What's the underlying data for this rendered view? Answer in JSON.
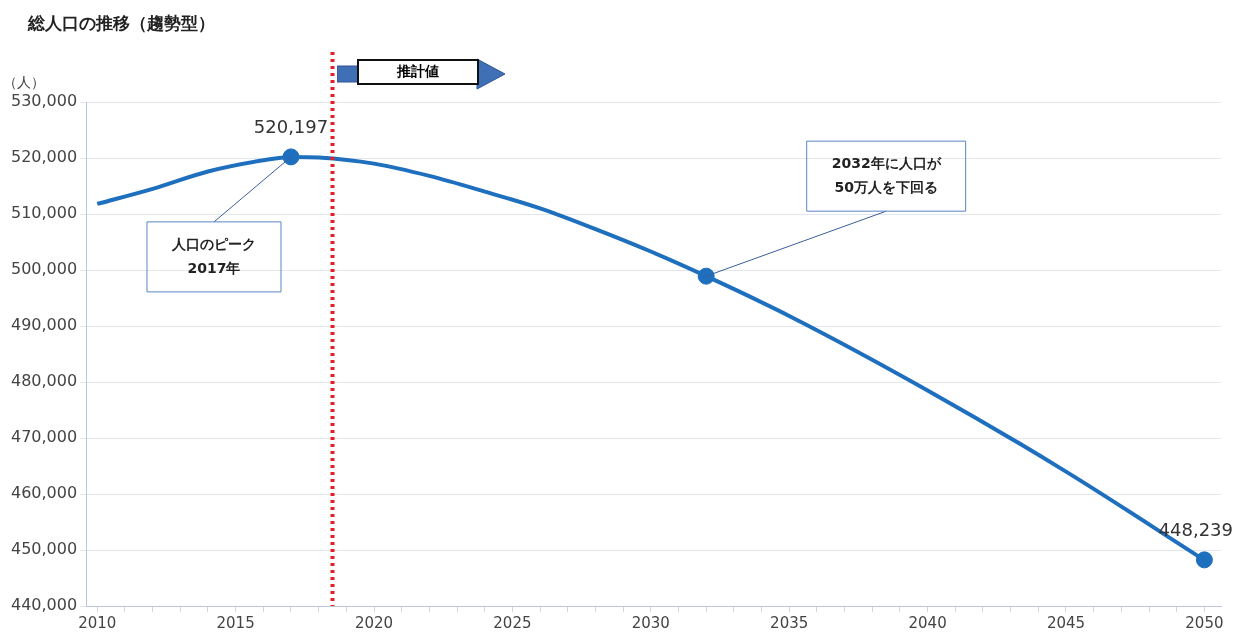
{
  "chart_data": {
    "type": "line",
    "title": "総人口の推移（趨勢型）",
    "ylabel": "（人）",
    "xlim": [
      2009.6,
      2050.6
    ],
    "xticks": [
      2010,
      {
        "value": 2011,
        "label": null
      },
      {
        "value": 2012,
        "label": null
      },
      {
        "value": 2013,
        "label": null
      },
      {
        "value": 2014,
        "label": null
      },
      2015,
      {
        "value": 2016,
        "label": null
      },
      {
        "value": 2017,
        "label": null
      },
      {
        "value": 2018,
        "label": null
      },
      {
        "value": 2019,
        "label": null
      },
      2020,
      {
        "value": 2021,
        "label": null
      },
      {
        "value": 2022,
        "label": null
      },
      {
        "value": 2023,
        "label": null
      },
      {
        "value": 2024,
        "label": null
      },
      2025,
      {
        "value": 2026,
        "label": null
      },
      {
        "value": 2027,
        "label": null
      },
      {
        "value": 2028,
        "label": null
      },
      {
        "value": 2029,
        "label": null
      },
      2030,
      {
        "value": 2031,
        "label": null
      },
      {
        "value": 2032,
        "label": null
      },
      {
        "value": 2033,
        "label": null
      },
      {
        "value": 2034,
        "label": null
      },
      2035,
      {
        "value": 2036,
        "label": null
      },
      {
        "value": 2037,
        "label": null
      },
      {
        "value": 2038,
        "label": null
      },
      {
        "value": 2039,
        "label": null
      },
      2040,
      {
        "value": 2041,
        "label": null
      },
      {
        "value": 2042,
        "label": null
      },
      {
        "value": 2043,
        "label": null
      },
      {
        "value": 2044,
        "label": null
      },
      2045,
      {
        "value": 2046,
        "label": null
      },
      {
        "value": 2047,
        "label": null
      },
      {
        "value": 2048,
        "label": null
      },
      {
        "value": 2049,
        "label": null
      },
      2050
    ],
    "ylim": [
      440000,
      530000
    ],
    "yticks": [
      {
        "value": 440000,
        "label": "440,000"
      },
      {
        "value": 450000,
        "label": "450,000"
      },
      {
        "value": 460000,
        "label": "460,000"
      },
      {
        "value": 470000,
        "label": "470,000"
      },
      {
        "value": 480000,
        "label": "480,000"
      },
      {
        "value": 490000,
        "label": "490,000"
      },
      {
        "value": 500000,
        "label": "500,000"
      },
      {
        "value": 510000,
        "label": "510,000"
      },
      {
        "value": 520000,
        "label": "520,000"
      },
      {
        "value": 530000,
        "label": "530,000"
      }
    ],
    "grid": "y",
    "legend": false,
    "series": [
      {
        "color": "#1f6fbf",
        "marker": "none",
        "x": [
          2010,
          2012,
          2014,
          2016,
          2017,
          2018,
          2020,
          2022,
          2024,
          2026,
          2028,
          2030,
          2032,
          2035,
          2040,
          2045,
          2050
        ],
        "values": [
          511800,
          514500,
          517600,
          519600,
          520200,
          520100,
          519000,
          516800,
          514000,
          511000,
          507300,
          503300,
          498900,
          491800,
          478500,
          464000,
          448200
        ]
      },
      {
        "type": "scatter",
        "color": "#1f6fbf",
        "marker": "circle",
        "x": [
          2017,
          2032,
          2050
        ],
        "values": [
          520197,
          498900,
          448239
        ],
        "value_labels": [
          "520,197",
          null,
          "448,239"
        ]
      }
    ],
    "ref_lines": [
      {
        "axis": "x",
        "value": 2018.5,
        "color": "#e0202a",
        "line_style": "dotted"
      }
    ],
    "annotations": [
      "推計値",
      {
        "text": "人口のピーク\n2017年",
        "x": 2017,
        "y": 520197
      },
      {
        "text": "2032年に人口が\n50万人を下回る",
        "x": 2032,
        "y": 498900
      }
    ]
  }
}
